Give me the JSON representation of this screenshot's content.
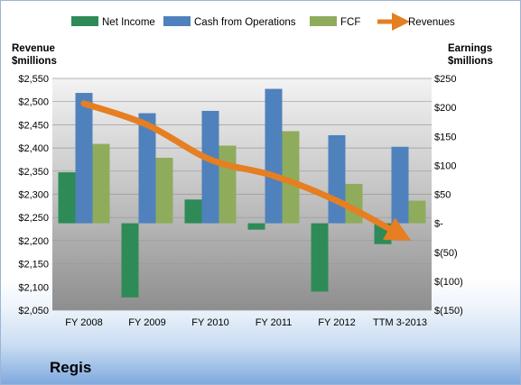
{
  "company": "Regis",
  "chart_data": {
    "type": "bar+line",
    "legend_position": "top",
    "categories": [
      "FY 2008",
      "FY 2009",
      "FY 2010",
      "FY 2011",
      "FY 2012",
      "TTM 3-2013"
    ],
    "series": [
      {
        "name": "Net Income",
        "axis": "right",
        "kind": "bar",
        "color": "#2e8b57",
        "values": [
          88,
          -128,
          41,
          -11,
          -118,
          -36
        ]
      },
      {
        "name": "Cash from Operations",
        "axis": "right",
        "kind": "bar",
        "color": "#4f81bd",
        "values": [
          225,
          190,
          194,
          232,
          152,
          132
        ]
      },
      {
        "name": "FCF",
        "axis": "right",
        "kind": "bar",
        "color": "#8fac5c",
        "values": [
          137,
          113,
          134,
          159,
          68,
          39
        ]
      },
      {
        "name": "Revenues",
        "axis": "left",
        "kind": "line",
        "color": "#e67e22",
        "values": [
          2496,
          2450,
          2375,
          2340,
          2286,
          2213
        ]
      }
    ],
    "left_axis": {
      "title_line1": "Revenue",
      "title_line2": "$millions",
      "ylim": [
        2050,
        2550
      ],
      "ticks": [
        2050,
        2100,
        2150,
        2200,
        2250,
        2300,
        2350,
        2400,
        2450,
        2500,
        2550
      ],
      "tick_labels": [
        "$2,050",
        "$2,100",
        "$2,150",
        "$2,200",
        "$2,250",
        "$2,300",
        "$2,350",
        "$2,400",
        "$2,450",
        "$2,500",
        "$2,550"
      ]
    },
    "right_axis": {
      "title_line1": "Earnings",
      "title_line2": "$millions",
      "ylim": [
        -150,
        250
      ],
      "ticks": [
        -150,
        -100,
        -50,
        0,
        50,
        100,
        150,
        200,
        250
      ],
      "tick_labels": [
        "$(150)",
        "$(100)",
        "$(50)",
        "$-",
        "$50",
        "$100",
        "$150",
        "$200",
        "$250"
      ]
    },
    "grid": true
  }
}
